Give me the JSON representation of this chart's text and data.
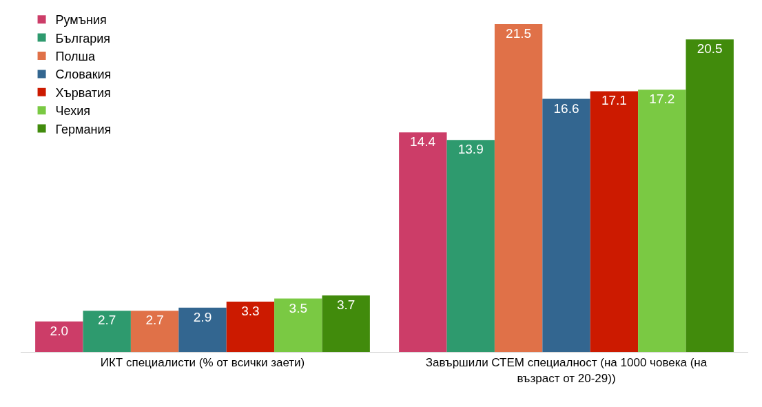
{
  "chart_data": {
    "type": "bar",
    "categories": [
      "ИКТ специалисти (% от всички заети)",
      "Завършили СТЕМ специалност (на 1000 човека (на възраст от 20-29))"
    ],
    "series": [
      {
        "name": "Румъния",
        "color": "#cc3d68",
        "values": [
          2.0,
          14.4
        ],
        "value_labels": [
          "2.0",
          "14.4"
        ]
      },
      {
        "name": "България",
        "color": "#2e9a6e",
        "values": [
          2.7,
          13.9
        ],
        "value_labels": [
          "2.7",
          "13.9"
        ]
      },
      {
        "name": "Полша",
        "color": "#e07148",
        "values": [
          2.7,
          21.5
        ],
        "value_labels": [
          "2.7",
          "21.5"
        ]
      },
      {
        "name": "Словакия",
        "color": "#336690",
        "values": [
          2.9,
          16.6
        ],
        "value_labels": [
          "2.9",
          "16.6"
        ]
      },
      {
        "name": "Хърватия",
        "color": "#cc1a00",
        "values": [
          3.3,
          17.1
        ],
        "value_labels": [
          "3.3",
          "17.1"
        ]
      },
      {
        "name": "Чехия",
        "color": "#7ac943",
        "values": [
          3.5,
          17.2
        ],
        "value_labels": [
          "3.5",
          "17.2"
        ]
      },
      {
        "name": "Германия",
        "color": "#418b0c",
        "values": [
          3.7,
          20.5
        ],
        "value_labels": [
          "3.7",
          "20.5"
        ]
      }
    ],
    "tick_labels": "x",
    "legend": "top left"
  }
}
